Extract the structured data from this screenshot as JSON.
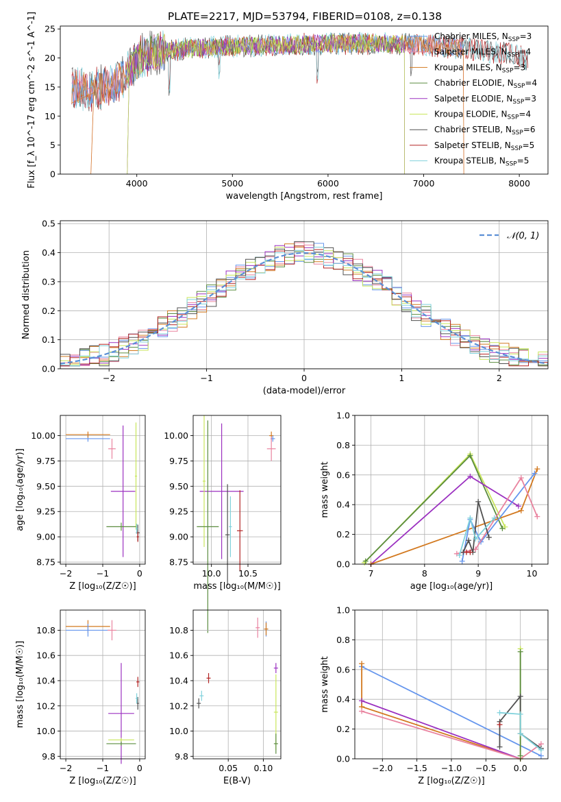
{
  "figure": {
    "title": "PLATE=2217, MJD=53794, FIBERID=0108, z=0.138"
  },
  "colors": {
    "Chabrier MILES": "#6495ed",
    "Salpeter MILES": "#e9839f",
    "Kroupa MILES": "#d2781e",
    "Chabrier ELODIE": "#5b8c3f",
    "Salpeter ELODIE": "#9b30c0",
    "Kroupa ELODIE": "#c8e65a",
    "Chabrier STELIB": "#505050",
    "Salpeter STELIB": "#b22222",
    "Kroupa STELIB": "#7fd1db",
    "normal": "#5b8fd6"
  },
  "chart_data": [
    {
      "id": "spectrum",
      "type": "line",
      "title": "PLATE=2217, MJD=53794, FIBERID=0108, z=0.138",
      "xlabel": "wavelength [Angstrom, rest frame]",
      "ylabel": "Flux [f_λ 10^-17 erg cm^-2 s^-1 A^-1]",
      "xlim": [
        3200,
        8300
      ],
      "ylim": [
        0,
        25.5
      ],
      "xticks": [
        4000,
        5000,
        6000,
        7000,
        8000
      ],
      "yticks": [
        0,
        5,
        10,
        15,
        20,
        25
      ],
      "continuum": [
        [
          3320,
          15.0
        ],
        [
          3450,
          14.5
        ],
        [
          3600,
          14.8
        ],
        [
          3750,
          15.5
        ],
        [
          3850,
          16.5
        ],
        [
          3950,
          18.5
        ],
        [
          4050,
          20.5
        ],
        [
          4200,
          21.0
        ],
        [
          4500,
          21.6
        ],
        [
          5000,
          22.0
        ],
        [
          5500,
          22.2
        ],
        [
          6000,
          22.5
        ],
        [
          6500,
          22.5
        ],
        [
          7000,
          22.3
        ],
        [
          7500,
          21.5
        ],
        [
          8000,
          20.5
        ],
        [
          8090,
          19.6
        ]
      ],
      "legend": [
        {
          "name": "Chabrier MILES",
          "nssp": "3"
        },
        {
          "name": "Salpeter MILES",
          "nssp": "4"
        },
        {
          "name": "Kroupa MILES",
          "nssp": "3"
        },
        {
          "name": "Chabrier ELODIE",
          "nssp": "4"
        },
        {
          "name": "Salpeter ELODIE",
          "nssp": "3"
        },
        {
          "name": "Kroupa ELODIE",
          "nssp": "4"
        },
        {
          "name": "Chabrier STELIB",
          "nssp": "6"
        },
        {
          "name": "Salpeter STELIB",
          "nssp": "5"
        },
        {
          "name": "Kroupa STELIB",
          "nssp": "5"
        }
      ],
      "legend_placement": "right",
      "grid": false
    },
    {
      "id": "residuals",
      "type": "line",
      "xlabel": "(data-model)/error",
      "ylabel": "Normed distribution",
      "xlim": [
        -2.5,
        2.5
      ],
      "ylim": [
        0,
        0.51
      ],
      "xticks": [
        -2,
        -1,
        0,
        1,
        2
      ],
      "yticks": [
        0.0,
        0.1,
        0.2,
        0.3,
        0.4,
        0.5
      ],
      "legend": "𝒩(0, 1)",
      "legend_placement": "top-right",
      "grid": true
    },
    {
      "id": "age_vs_Z",
      "type": "scatter",
      "xlabel": "Z [log₁₀(Z/Z☉)]",
      "ylabel": "age  [log₁₀(age/yr)]",
      "xlim": [
        -2.15,
        0.15
      ],
      "ylim": [
        8.73,
        10.2
      ],
      "xticks": [
        -2,
        -1,
        0
      ],
      "yticks": [
        8.75,
        9.0,
        9.25,
        9.5,
        9.75,
        10.0
      ],
      "points": [
        {
          "series": "Chabrier MILES",
          "x": -1.4,
          "y": 9.97,
          "xerr": 0.6,
          "yerr": 0.03
        },
        {
          "series": "Kroupa MILES",
          "x": -1.4,
          "y": 10.01,
          "xerr": 0.6,
          "yerr": 0.03
        },
        {
          "series": "Salpeter MILES",
          "x": -0.75,
          "y": 9.87,
          "xerr": 0.1,
          "yerr": 0.1
        },
        {
          "series": "Salpeter ELODIE",
          "x": -0.45,
          "y": 9.45,
          "xerr": 0.33,
          "yerr": 0.65
        },
        {
          "series": "Kroupa ELODIE",
          "x": -0.1,
          "y": 9.6,
          "xerr": 0.03,
          "yerr": 0.53
        },
        {
          "series": "Chabrier ELODIE",
          "x": -0.5,
          "y": 9.1,
          "xerr": 0.4,
          "yerr": 0.04
        },
        {
          "series": "Chabrier STELIB",
          "x": -0.05,
          "y": 9.04,
          "xerr": 0.05,
          "yerr": 0.08
        },
        {
          "series": "Salpeter STELIB",
          "x": -0.05,
          "y": 9.0,
          "xerr": 0.03,
          "yerr": 0.05
        },
        {
          "series": "Kroupa STELIB",
          "x": -0.08,
          "y": 9.08,
          "xerr": 0.03,
          "yerr": 0.05
        }
      ],
      "grid": true
    },
    {
      "id": "age_vs_mass",
      "type": "scatter",
      "xlabel": "mass [log₁₀(M/M☉)]",
      "ylabel": "",
      "xlim": [
        9.75,
        10.95
      ],
      "ylim": [
        8.73,
        10.2
      ],
      "xticks": [
        10.0,
        10.5
      ],
      "yticks": [
        8.75,
        9.0,
        9.25,
        9.5,
        9.75,
        10.0
      ],
      "points": [
        {
          "series": "Kroupa MILES",
          "x": 10.82,
          "y": 10.0,
          "xerr": 0.03,
          "yerr": 0.04
        },
        {
          "series": "Chabrier MILES",
          "x": 10.84,
          "y": 9.97,
          "xerr": 0.03,
          "yerr": 0.03
        },
        {
          "series": "Salpeter MILES",
          "x": 10.82,
          "y": 9.87,
          "xerr": 0.06,
          "yerr": 0.12
        },
        {
          "series": "Salpeter ELODIE",
          "x": 10.14,
          "y": 9.45,
          "xerr": 0.3,
          "yerr": 0.67
        },
        {
          "series": "Kroupa ELODIE",
          "x": 9.9,
          "y": 9.55,
          "xerr": 0.02,
          "yerr": 0.65
        },
        {
          "series": "Chabrier ELODIE",
          "x": 9.95,
          "y": 9.1,
          "xerr": 0.15,
          "yerr": 1.05
        },
        {
          "series": "Chabrier STELIB",
          "x": 10.22,
          "y": 9.02,
          "xerr": 0.03,
          "yerr": 0.5
        },
        {
          "series": "Salpeter STELIB",
          "x": 10.39,
          "y": 9.06,
          "xerr": 0.04,
          "yerr": 0.4
        },
        {
          "series": "Kroupa STELIB",
          "x": 10.26,
          "y": 9.1,
          "xerr": 0.02,
          "yerr": 0.3
        }
      ],
      "grid": true
    },
    {
      "id": "weight_vs_age",
      "type": "line",
      "xlabel": "age  [log₁₀(age/yr)]",
      "ylabel": "mass weight",
      "xlim": [
        6.7,
        10.3
      ],
      "ylim": [
        0,
        1.0
      ],
      "xticks": [
        7,
        8,
        9,
        10
      ],
      "yticks": [
        0.0,
        0.2,
        0.4,
        0.6,
        0.8,
        1.0
      ],
      "series": [
        {
          "name": "Kroupa ELODIE",
          "points": [
            [
              6.88,
              0.01
            ],
            [
              8.85,
              0.74
            ],
            [
              9.5,
              0.25
            ]
          ]
        },
        {
          "name": "Chabrier ELODIE",
          "points": [
            [
              6.9,
              0.02
            ],
            [
              8.85,
              0.73
            ],
            [
              9.45,
              0.24
            ]
          ]
        },
        {
          "name": "Salpeter ELODIE",
          "points": [
            [
              7.0,
              0.0
            ],
            [
              8.85,
              0.59
            ],
            [
              9.75,
              0.39
            ]
          ]
        },
        {
          "name": "Kroupa MILES",
          "points": [
            [
              7.0,
              0.0
            ],
            [
              9.8,
              0.36
            ],
            [
              10.1,
              0.64
            ]
          ]
        },
        {
          "name": "Chabrier MILES",
          "points": [
            [
              8.7,
              0.02
            ],
            [
              8.85,
              0.3
            ],
            [
              9.05,
              0.15
            ],
            [
              10.05,
              0.61
            ]
          ]
        },
        {
          "name": "Salpeter MILES",
          "points": [
            [
              8.6,
              0.07
            ],
            [
              8.95,
              0.1
            ],
            [
              9.8,
              0.58
            ],
            [
              10.1,
              0.32
            ]
          ]
        },
        {
          "name": "Chabrier STELIB",
          "points": [
            [
              8.72,
              0.08
            ],
            [
              8.82,
              0.16
            ],
            [
              8.9,
              0.08
            ],
            [
              9.0,
              0.42
            ],
            [
              9.2,
              0.18
            ]
          ]
        },
        {
          "name": "Salpeter STELIB",
          "points": [
            [
              8.78,
              0.08
            ],
            [
              8.85,
              0.08
            ]
          ]
        },
        {
          "name": "Kroupa STELIB",
          "points": [
            [
              8.65,
              0.06
            ],
            [
              8.85,
              0.31
            ],
            [
              8.95,
              0.17
            ],
            [
              9.3,
              0.31
            ]
          ]
        }
      ],
      "grid": true
    },
    {
      "id": "mass_vs_Z",
      "type": "scatter",
      "xlabel": "Z [log₁₀(Z/Z☉)]",
      "ylabel": "mass [log₁₀(M/M☉)]",
      "xlim": [
        -2.15,
        0.15
      ],
      "ylim": [
        9.78,
        10.96
      ],
      "xticks": [
        -2,
        -1,
        0
      ],
      "yticks": [
        9.8,
        10.0,
        10.2,
        10.4,
        10.6,
        10.8
      ],
      "points": [
        {
          "series": "Kroupa MILES",
          "x": -1.4,
          "y": 10.83,
          "xerr": 0.6,
          "yerr": 0.05
        },
        {
          "series": "Chabrier MILES",
          "x": -1.4,
          "y": 10.8,
          "xerr": 0.6,
          "yerr": 0.05
        },
        {
          "series": "Salpeter MILES",
          "x": -0.75,
          "y": 10.8,
          "xerr": 0.12,
          "yerr": 0.08
        },
        {
          "series": "Salpeter ELODIE",
          "x": -0.5,
          "y": 10.14,
          "xerr": 0.35,
          "yerr": 0.4
        },
        {
          "series": "Kroupa ELODIE",
          "x": -0.5,
          "y": 9.93,
          "xerr": 0.35,
          "yerr": 0.0
        },
        {
          "series": "Chabrier ELODIE",
          "x": -0.5,
          "y": 9.9,
          "xerr": 0.4,
          "yerr": 0.0
        },
        {
          "series": "Chabrier STELIB",
          "x": -0.05,
          "y": 10.22,
          "xerr": 0.03,
          "yerr": 0.05
        },
        {
          "series": "Salpeter STELIB",
          "x": -0.05,
          "y": 10.39,
          "xerr": 0.04,
          "yerr": 0.04
        },
        {
          "series": "Kroupa STELIB",
          "x": -0.08,
          "y": 10.26,
          "xerr": 0.03,
          "yerr": 0.04
        }
      ],
      "grid": true
    },
    {
      "id": "mass_vs_ebv",
      "type": "scatter",
      "xlabel": "E(B-V)",
      "ylabel": "",
      "xlim": [
        0.0,
        0.125
      ],
      "ylim": [
        9.78,
        10.96
      ],
      "xticks": [
        0.05,
        0.1
      ],
      "yticks": [
        9.8,
        10.0,
        10.2,
        10.4,
        10.6,
        10.8
      ],
      "points": [
        {
          "series": "Salpeter MILES",
          "x": 0.092,
          "y": 10.82,
          "xerr": 0.0,
          "yerr": 0.08
        },
        {
          "series": "Chabrier MILES",
          "x": 0.104,
          "y": 10.81,
          "xerr": 0.0,
          "yerr": 0.06
        },
        {
          "series": "Kroupa MILES",
          "x": 0.104,
          "y": 10.81,
          "xerr": 0.0,
          "yerr": 0.05
        },
        {
          "series": "Salpeter ELODIE",
          "x": 0.118,
          "y": 10.5,
          "xerr": 0.0,
          "yerr": 0.04
        },
        {
          "series": "Kroupa ELODIE",
          "x": 0.118,
          "y": 10.15,
          "xerr": 0.0,
          "yerr": 0.3
        },
        {
          "series": "Chabrier ELODIE",
          "x": 0.118,
          "y": 9.9,
          "xerr": 0.0,
          "yerr": 0.08
        },
        {
          "series": "Chabrier STELIB",
          "x": 0.008,
          "y": 10.22,
          "xerr": 0.0,
          "yerr": 0.04
        },
        {
          "series": "Kroupa STELIB",
          "x": 0.012,
          "y": 10.28,
          "xerr": 0.0,
          "yerr": 0.04
        },
        {
          "series": "Salpeter STELIB",
          "x": 0.022,
          "y": 10.42,
          "xerr": 0.0,
          "yerr": 0.04
        }
      ],
      "grid": true
    },
    {
      "id": "weight_vs_Z",
      "type": "line",
      "xlabel": "Z [log₁₀(Z/Z☉)]",
      "ylabel": "mass weight",
      "xlim": [
        -2.4,
        0.4
      ],
      "ylim": [
        0,
        1.0
      ],
      "xticks": [
        -2.0,
        -1.5,
        -1.0,
        -0.5,
        0.0
      ],
      "yticks": [
        0.0,
        0.2,
        0.4,
        0.6,
        0.8,
        1.0
      ],
      "series": [
        {
          "name": "Chabrier MILES",
          "points": [
            [
              -2.3,
              0.62
            ],
            [
              0.3,
              0.02
            ]
          ]
        },
        {
          "name": "Kroupa MILES",
          "points": [
            [
              -2.3,
              0.64
            ],
            [
              -2.3,
              0.35
            ],
            [
              0.0,
              0.0
            ]
          ]
        },
        {
          "name": "Salpeter ELODIE",
          "points": [
            [
              -2.3,
              0.39
            ],
            [
              0.0,
              0.0
            ]
          ]
        },
        {
          "name": "Salpeter MILES",
          "points": [
            [
              -2.3,
              0.32
            ],
            [
              0.0,
              0.0
            ],
            [
              0.3,
              0.1
            ]
          ]
        },
        {
          "name": "Kroupa ELODIE",
          "points": [
            [
              0.0,
              0.74
            ],
            [
              0.0,
              0.0
            ]
          ]
        },
        {
          "name": "Chabrier ELODIE",
          "points": [
            [
              0.0,
              0.72
            ],
            [
              0.0,
              0.02
            ]
          ]
        },
        {
          "name": "Chabrier STELIB",
          "points": [
            [
              -0.3,
              0.08
            ],
            [
              -0.3,
              0.25
            ],
            [
              0.0,
              0.42
            ],
            [
              0.0,
              0.17
            ],
            [
              0.3,
              0.07
            ]
          ]
        },
        {
          "name": "Kroupa STELIB",
          "points": [
            [
              -0.3,
              0.31
            ],
            [
              0.0,
              0.3
            ],
            [
              0.0,
              0.17
            ],
            [
              0.3,
              0.06
            ]
          ]
        },
        {
          "name": "Salpeter STELIB",
          "points": [
            [
              -0.3,
              0.23
            ]
          ]
        }
      ],
      "grid": true
    }
  ]
}
